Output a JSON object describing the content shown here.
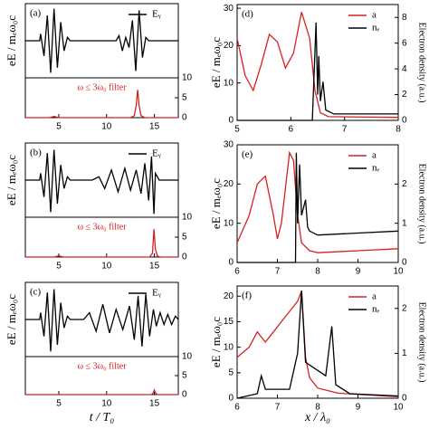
{
  "chart_data": [
    {
      "type": "line",
      "panel_label": "(a)",
      "ylabel": "eE / mₑω₀c",
      "legend": "upper right",
      "xlim": [
        1.5,
        17.5
      ],
      "ylim": [
        -1.1,
        1.1
      ],
      "series": [
        {
          "name": "Eᵧ",
          "color": "#000000",
          "x": [
            1.5,
            3.0,
            3.1,
            3.45,
            3.8,
            4.15,
            4.5,
            4.85,
            5.2,
            5.55,
            5.9,
            6.2,
            11.0,
            11.3,
            11.65,
            12.0,
            12.35,
            12.7,
            13.05,
            13.4,
            13.75,
            14.1,
            14.4,
            17.5
          ],
          "values": [
            0,
            0,
            0.2,
            -0.45,
            0.75,
            -0.95,
            0.95,
            -0.8,
            0.55,
            -0.3,
            0.1,
            0,
            0,
            0.15,
            -0.3,
            0.1,
            -0.2,
            0.6,
            -0.9,
            0.9,
            -0.5,
            0.1,
            0,
            0
          ]
        }
      ]
    },
    {
      "type": "line",
      "annotation": "ω ≤ 3ω₀ filter",
      "annotation_color": "#d62020",
      "ytick_side": "right",
      "xlim": [
        1.5,
        17.5
      ],
      "xticks": [
        5,
        10,
        15
      ],
      "ylim": [
        0,
        10
      ],
      "yticks": [
        0,
        5,
        10
      ],
      "series": [
        {
          "color": "#d62020",
          "x": [
            1.5,
            4.0,
            4.5,
            5.0,
            12.5,
            12.9,
            13.1,
            13.25,
            13.4,
            13.6,
            14.0,
            17.5
          ],
          "values": [
            0,
            0,
            0.3,
            0,
            0,
            0.5,
            3,
            7,
            3,
            0.5,
            0,
            0
          ]
        }
      ]
    },
    {
      "type": "line",
      "panel_label": "(b)",
      "ylabel": "eE / mₑω₀c",
      "legend": "upper right",
      "xlim": [
        1.5,
        17.5
      ],
      "ylim": [
        -1.1,
        1.1
      ],
      "series": [
        {
          "name": "Eᵧ",
          "color": "#000000",
          "x": [
            1.5,
            3.0,
            3.1,
            3.45,
            3.8,
            4.15,
            4.5,
            4.85,
            5.2,
            5.55,
            5.9,
            6.2,
            8.5,
            9.2,
            9.8,
            10.5,
            11.2,
            11.9,
            12.5,
            13.1,
            13.6,
            14.0,
            14.4,
            14.7,
            14.95,
            15.1,
            15.5,
            17.5
          ],
          "values": [
            0,
            0,
            0.2,
            -0.5,
            0.8,
            -0.95,
            0.9,
            -0.7,
            0.45,
            -0.25,
            0.1,
            0,
            0,
            0.1,
            -0.25,
            0.3,
            -0.35,
            0.35,
            -0.3,
            0.3,
            -0.4,
            0.5,
            -0.6,
            0.7,
            -1.0,
            0.2,
            0,
            0
          ]
        }
      ]
    },
    {
      "type": "line",
      "annotation": "ω ≤ 3ω₀ filter",
      "annotation_color": "#d62020",
      "ytick_side": "right",
      "xlim": [
        1.5,
        17.5
      ],
      "xticks": [
        5,
        10,
        15
      ],
      "ylim": [
        0,
        10
      ],
      "yticks": [
        0,
        5,
        10
      ],
      "series": [
        {
          "color": "#d62020",
          "x": [
            1.5,
            4.5,
            5.0,
            5.5,
            14.5,
            14.8,
            14.95,
            15.1,
            15.3,
            15.6,
            17.5
          ],
          "values": [
            0,
            0,
            0.3,
            0,
            0,
            1,
            7,
            2,
            0.3,
            0,
            0
          ]
        }
      ]
    },
    {
      "type": "line",
      "panel_label": "(c)",
      "ylabel": "eE / mₑω₀c",
      "legend": "upper right",
      "xlim": [
        1.5,
        17.5
      ],
      "ylim": [
        -1.1,
        1.1
      ],
      "series": [
        {
          "name": "Eᵧ",
          "color": "#000000",
          "x": [
            1.5,
            3.0,
            3.1,
            3.45,
            3.8,
            4.15,
            4.5,
            4.85,
            5.2,
            5.55,
            5.9,
            6.2,
            7.6,
            8.2,
            8.9,
            9.6,
            10.3,
            11.0,
            11.7,
            12.4,
            12.9,
            13.3,
            13.7,
            14.1,
            14.5,
            14.9,
            15.2,
            15.6,
            16.0,
            16.4,
            16.8,
            17.2,
            17.5
          ],
          "values": [
            0,
            0,
            0.2,
            -0.5,
            0.8,
            -0.95,
            0.9,
            -0.75,
            0.5,
            -0.25,
            0.1,
            0,
            0,
            0.2,
            -0.35,
            0.45,
            -0.4,
            0.3,
            -0.3,
            0.4,
            -0.6,
            0.7,
            -0.8,
            0.75,
            -0.5,
            0.3,
            -0.2,
            0.2,
            -0.15,
            0.15,
            -0.15,
            0.1,
            0
          ]
        }
      ]
    },
    {
      "type": "line",
      "annotation": "ω ≤ 3ω₀ filter",
      "annotation_color": "#d62020",
      "ytick_side": "right",
      "xlabel": "t / T₀",
      "xlim": [
        1.5,
        17.5
      ],
      "xticks": [
        5,
        10,
        15
      ],
      "ylim": [
        0,
        10
      ],
      "yticks": [
        0,
        5,
        10
      ],
      "series": [
        {
          "color": "#d62020",
          "x": [
            1.5,
            14.7,
            14.9,
            15.0,
            15.1,
            15.3,
            17.5
          ],
          "values": [
            0,
            0,
            0.5,
            1.2,
            0.5,
            0,
            0
          ]
        }
      ]
    },
    {
      "type": "line",
      "panel_label": "(d)",
      "ylabel": "eE / mₑω₀c",
      "y2label": "Electron density (a.u.)",
      "legend": "upper right",
      "xlim": [
        5,
        8
      ],
      "xticks": [
        5,
        6,
        7,
        8
      ],
      "ylim": [
        0,
        31
      ],
      "yticks": [
        0,
        10,
        20,
        30
      ],
      "y2lim": [
        0,
        9
      ],
      "y2ticks": [
        0,
        2,
        4,
        6,
        8
      ],
      "series": [
        {
          "name": "a",
          "color": "#d62020",
          "x": [
            5,
            5.15,
            5.3,
            5.45,
            5.6,
            5.75,
            5.9,
            6.05,
            6.2,
            6.35,
            6.45,
            6.55,
            6.7,
            8
          ],
          "values": [
            22,
            12,
            8,
            15,
            23,
            21,
            14,
            18,
            29,
            22,
            8,
            2,
            1,
            0.8
          ]
        },
        {
          "name": "nₑ",
          "color": "#000000",
          "axis": "y2",
          "x": [
            5,
            6.4,
            6.47,
            6.5,
            6.52,
            6.55,
            6.6,
            6.65,
            6.8,
            8
          ],
          "values": [
            0,
            0,
            7.6,
            2,
            5,
            1.5,
            3,
            0.8,
            0.5,
            0.5
          ]
        }
      ]
    },
    {
      "type": "line",
      "panel_label": "(e)",
      "ylabel": "eE / mₑω₀c",
      "y2label": "Electron density (a.u.)",
      "legend": "upper right",
      "xlim": [
        6,
        10
      ],
      "xticks": [
        6,
        7,
        8,
        9,
        10
      ],
      "ylim": [
        0,
        30
      ],
      "yticks": [
        0,
        10,
        20,
        30
      ],
      "y2lim": [
        0,
        3
      ],
      "y2ticks": [
        0,
        1,
        2
      ],
      "series": [
        {
          "name": "a",
          "color": "#d62020",
          "x": [
            6,
            6.3,
            6.5,
            6.7,
            6.9,
            7.0,
            7.1,
            7.3,
            7.4,
            7.5,
            7.6,
            7.8,
            8,
            9,
            10
          ],
          "values": [
            5,
            12,
            20,
            22,
            12,
            6,
            10,
            28,
            26,
            12,
            5,
            3,
            2.5,
            3,
            3.5
          ]
        },
        {
          "name": "nₑ",
          "color": "#000000",
          "axis": "y2",
          "x": [
            6,
            7.45,
            7.47,
            7.5,
            7.55,
            7.6,
            7.7,
            7.75,
            7.8,
            8,
            9,
            10
          ],
          "values": [
            0,
            0,
            2.8,
            1,
            2.5,
            1.2,
            1.6,
            0.9,
            0.8,
            0.7,
            0.75,
            0.8
          ]
        }
      ]
    },
    {
      "type": "line",
      "panel_label": "(f)",
      "ylabel": "eE / mₑω₀c",
      "y2label": "Electron density (a.u.)",
      "legend": "upper right",
      "xlabel": "x / λ₀",
      "xlim": [
        6,
        10
      ],
      "xticks": [
        6,
        7,
        8,
        9,
        10
      ],
      "ylim": [
        0,
        22
      ],
      "yticks": [
        0,
        5,
        10,
        15,
        20
      ],
      "y2lim": [
        0,
        2.5
      ],
      "y2ticks": [
        0,
        1,
        2
      ],
      "series": [
        {
          "name": "a",
          "color": "#d62020",
          "x": [
            6,
            6.3,
            6.5,
            6.7,
            6.9,
            7.1,
            7.5,
            7.6,
            7.7,
            7.8,
            8,
            8.5,
            10
          ],
          "values": [
            8,
            10,
            13,
            11,
            13,
            15,
            19,
            21,
            8,
            4,
            2,
            1,
            0.3
          ]
        },
        {
          "name": "nₑ",
          "color": "#000000",
          "axis": "y2",
          "x": [
            6,
            6.5,
            6.6,
            6.7,
            7.3,
            7.5,
            7.6,
            7.7,
            8.2,
            8.35,
            8.45,
            8.8,
            10
          ],
          "values": [
            0,
            0.1,
            0.5,
            0.2,
            0.2,
            1.0,
            2.4,
            0.8,
            0.5,
            1.6,
            0.3,
            0.1,
            0.05
          ]
        }
      ]
    }
  ]
}
